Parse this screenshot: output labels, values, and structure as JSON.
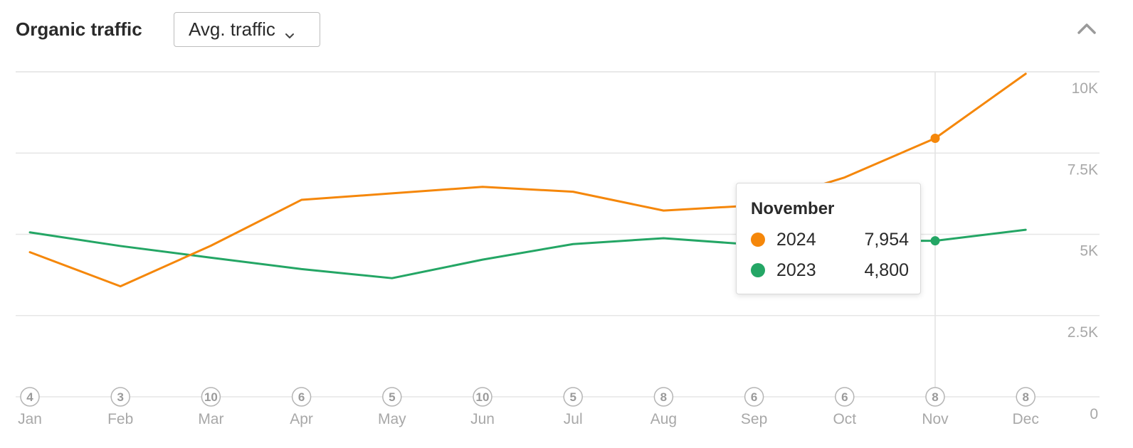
{
  "header": {
    "title": "Organic traffic",
    "metric_selector": "Avg. traffic"
  },
  "icons": {
    "dropdown": "chevron-down-icon",
    "collapse": "chevron-up-icon"
  },
  "colors": {
    "series_2024": "#f5870a",
    "series_2023": "#24a665",
    "grid": "#e6e6e6",
    "tick_text": "#a8a8a8"
  },
  "tooltip": {
    "title": "November",
    "rows": [
      {
        "year": "2024",
        "value": "7,954"
      },
      {
        "year": "2023",
        "value": "4,800"
      }
    ]
  },
  "chart_data": {
    "type": "line",
    "title": "Organic traffic",
    "xlabel": "",
    "ylabel": "",
    "categories": [
      "Jan",
      "Feb",
      "Mar",
      "Apr",
      "May",
      "Jun",
      "Jul",
      "Aug",
      "Sep",
      "Oct",
      "Nov",
      "Dec"
    ],
    "series": [
      {
        "name": "2024",
        "values": [
          4450,
          3400,
          4650,
          6060,
          6260,
          6460,
          6310,
          5730,
          5890,
          6750,
          7954,
          9940
        ]
      },
      {
        "name": "2023",
        "values": [
          5060,
          4640,
          4280,
          3930,
          3650,
          4220,
          4700,
          4880,
          4680,
          4800,
          4800,
          5140
        ]
      }
    ],
    "ylim": [
      0,
      10000
    ],
    "yticks": [
      0,
      2500,
      5000,
      7500,
      10000
    ],
    "ytick_labels": [
      "0",
      "2.5K",
      "5K",
      "7.5K",
      "10K"
    ],
    "event_badges": [
      4,
      3,
      10,
      6,
      5,
      10,
      5,
      8,
      6,
      6,
      8,
      8
    ],
    "highlight_category": "Nov",
    "grid": true,
    "y_axis_position": "right"
  }
}
